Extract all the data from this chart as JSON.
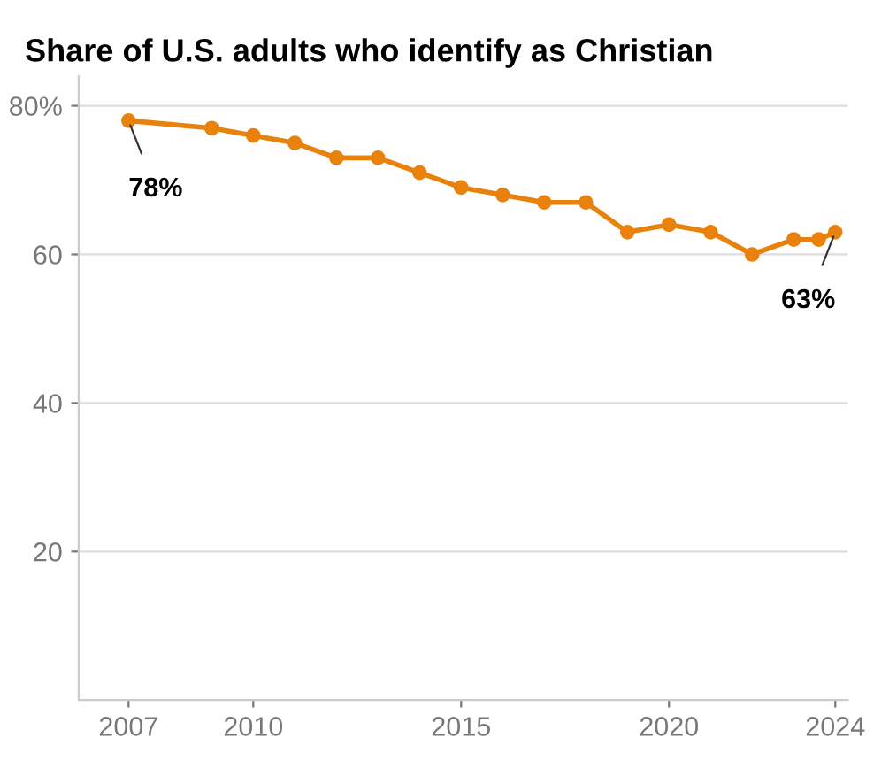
{
  "chart_data": {
    "type": "line",
    "title": "Share of U.S. adults who identify as Christian",
    "x": [
      2007,
      2009,
      2010,
      2011,
      2012,
      2013,
      2014,
      2015,
      2016,
      2017,
      2018,
      2019,
      2020,
      2021,
      2022,
      2023,
      2023.6,
      2024
    ],
    "series": [
      {
        "color": "#e8820c",
        "values": [
          78,
          77,
          76,
          75,
          73,
          73,
          71,
          69,
          68,
          67,
          67,
          63,
          64,
          63,
          60,
          62,
          62,
          63
        ]
      }
    ],
    "xlim": [
      2005.8,
      2024.3
    ],
    "xticks": [
      2007,
      2010,
      2015,
      2020,
      2024
    ],
    "ylim": [
      0,
      84
    ],
    "yticks": [
      {
        "value": 20,
        "label": "20"
      },
      {
        "value": 40,
        "label": "40"
      },
      {
        "value": 60,
        "label": "60"
      },
      {
        "value": 80,
        "label": "80%"
      }
    ],
    "grid": "y",
    "marker": "circle",
    "line_style": "solid",
    "annotations": [
      {
        "text": "78%",
        "x": 2007,
        "y": 78
      },
      {
        "text": "63%",
        "x": 2024,
        "y": 63
      }
    ]
  }
}
